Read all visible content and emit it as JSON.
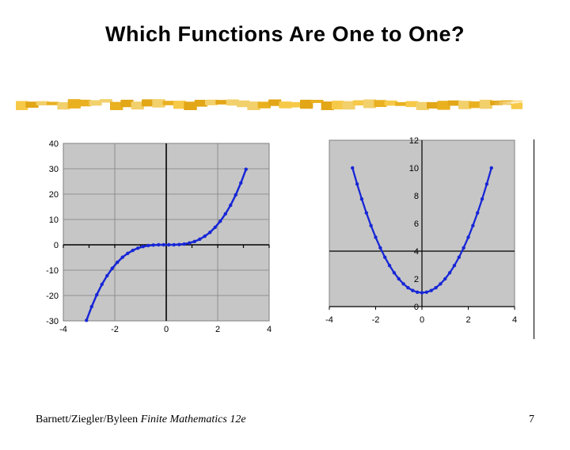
{
  "title": "Which Functions Are One to One?",
  "rule": {
    "colors": [
      "#f7c948",
      "#e9b020",
      "#f2d06b",
      "#e2a617"
    ],
    "height": 12
  },
  "chart1": {
    "type": "line",
    "background_color": "#c6c6c6",
    "plot_border_color": "#808080",
    "grid_color": "#808080",
    "axis_color": "#000000",
    "axis_width": 1.6,
    "line_color": "#1726d6",
    "marker_color": "#1726d6",
    "marker_size": 2.2,
    "line_width": 2.5,
    "xlim": [
      -4,
      4
    ],
    "ylim": [
      -30,
      40
    ],
    "xticks_major": [
      -4,
      -2,
      0,
      2,
      4
    ],
    "xticks_minor": [
      -3,
      -1,
      1,
      3
    ],
    "yticks": [
      -30,
      -20,
      -10,
      0,
      10,
      20,
      30,
      40
    ],
    "tick_fontsize": 11,
    "tick_color": "#000000",
    "series_x": [
      -3.1,
      -2.9,
      -2.7,
      -2.5,
      -2.3,
      -2.1,
      -1.9,
      -1.7,
      -1.5,
      -1.3,
      -1.1,
      -0.9,
      -0.7,
      -0.5,
      -0.3,
      -0.1,
      0.1,
      0.3,
      0.5,
      0.7,
      0.9,
      1.1,
      1.3,
      1.5,
      1.7,
      1.9,
      2.1,
      2.3,
      2.5,
      2.7,
      2.9,
      3.1
    ],
    "series_y": [
      -29.8,
      -24.4,
      -19.7,
      -15.6,
      -12.2,
      -9.3,
      -6.9,
      -4.9,
      -3.4,
      -2.2,
      -1.3,
      -0.7,
      -0.3,
      -0.1,
      0.0,
      0.0,
      0.0,
      0.0,
      0.1,
      0.3,
      0.7,
      1.3,
      2.2,
      3.4,
      4.9,
      6.9,
      9.3,
      12.2,
      15.6,
      19.7,
      24.4,
      29.8
    ]
  },
  "chart2": {
    "type": "line",
    "background_color": "#c6c6c6",
    "plot_border_color": "#808080",
    "axis_color": "#000000",
    "axis_width": 1.2,
    "line_color": "#1726d6",
    "marker_color": "#1726d6",
    "marker_size": 2.2,
    "line_width": 2.3,
    "xlim": [
      -4,
      4
    ],
    "ylim": [
      0,
      12
    ],
    "xticks": [
      -4,
      -2,
      0,
      2,
      4
    ],
    "yticks": [
      0,
      2,
      4,
      6,
      8,
      10,
      12
    ],
    "tick_fontsize": 11,
    "tick_color": "#000000",
    "xlabel_offset": 20,
    "series_x": [
      -3.0,
      -2.8,
      -2.6,
      -2.4,
      -2.2,
      -2.0,
      -1.8,
      -1.6,
      -1.4,
      -1.2,
      -1.0,
      -0.8,
      -0.6,
      -0.4,
      -0.2,
      0.0,
      0.2,
      0.4,
      0.6,
      0.8,
      1.0,
      1.2,
      1.4,
      1.6,
      1.8,
      2.0,
      2.2,
      2.4,
      2.6,
      2.8,
      3.0
    ],
    "series_y": [
      10.0,
      8.84,
      7.76,
      6.76,
      5.84,
      5.0,
      4.24,
      3.56,
      2.96,
      2.44,
      2.0,
      1.64,
      1.36,
      1.16,
      1.04,
      1.0,
      1.04,
      1.16,
      1.36,
      1.64,
      2.0,
      2.44,
      2.96,
      3.56,
      4.24,
      5.0,
      5.84,
      6.76,
      7.76,
      8.84,
      10.0
    ]
  },
  "footer": {
    "authors": "Barnett/Ziegler/Byleen",
    "book": "Finite Mathematics 12e",
    "page": "7"
  }
}
